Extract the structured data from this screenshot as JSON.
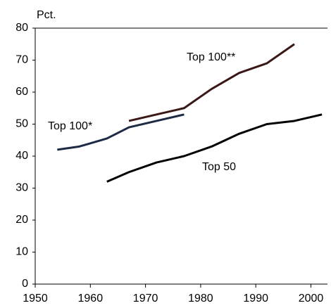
{
  "chart_data": {
    "type": "line",
    "y_label": "Pct.",
    "xlim": [
      1950,
      2003
    ],
    "xticks": [
      1950,
      1960,
      1970,
      1980,
      1990,
      2000
    ],
    "ylim": [
      0,
      80
    ],
    "yticks": [
      0,
      10,
      20,
      30,
      40,
      50,
      60,
      70,
      80
    ],
    "grid": false,
    "series": [
      {
        "name": "Top 100*",
        "color": "#1c2a44",
        "x": [
          1954,
          1958,
          1963,
          1967,
          1972,
          1977
        ],
        "values": [
          42,
          43,
          45.5,
          49,
          51,
          53
        ]
      },
      {
        "name": "Top 100**",
        "color": "#3a1818",
        "x": [
          1967,
          1972,
          1977,
          1982,
          1987,
          1992,
          1997
        ],
        "values": [
          51,
          53,
          55,
          61,
          66,
          69,
          75
        ]
      },
      {
        "name": "Top 50",
        "color": "#000000",
        "x": [
          1963,
          1967,
          1972,
          1977,
          1982,
          1987,
          1992,
          1997,
          2002
        ],
        "values": [
          32,
          35,
          38,
          40,
          43,
          47,
          50,
          51,
          53
        ]
      }
    ]
  }
}
